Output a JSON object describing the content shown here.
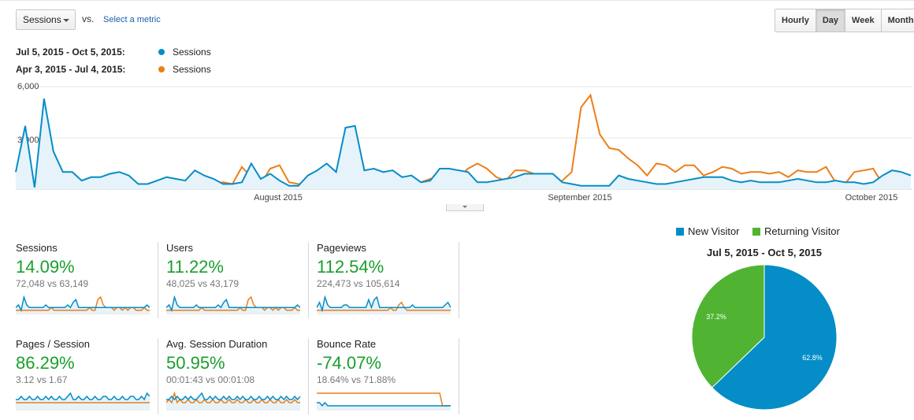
{
  "controls": {
    "metric_select": "Sessions",
    "vs_label": "vs.",
    "select_metric_link": "Select a metric",
    "granularity": [
      {
        "label": "Hourly",
        "active": false
      },
      {
        "label": "Day",
        "active": true
      },
      {
        "label": "Week",
        "active": false
      },
      {
        "label": "Month",
        "active": false
      }
    ]
  },
  "legend": [
    {
      "range": "Jul 5, 2015 - Oct 5, 2015:",
      "series": "Sessions",
      "color": "#058dc7"
    },
    {
      "range": "Apr 3, 2015 - Jul 4, 2015:",
      "series": "Sessions",
      "color": "#ed7e17"
    }
  ],
  "chart_data": {
    "type": "line",
    "y_ticks": [
      "6,000",
      "3,000"
    ],
    "ylim": [
      0,
      6000
    ],
    "x_ticks": [
      "August 2015",
      "September 2015",
      "October 2015"
    ],
    "grid": true,
    "series": [
      {
        "name": "Sessions (Jul 5, 2015 - Oct 5, 2015)",
        "color": "#058dc7",
        "values": [
          1000,
          3700,
          100,
          5300,
          2200,
          1000,
          1000,
          500,
          700,
          700,
          900,
          1000,
          800,
          300,
          300,
          500,
          700,
          600,
          500,
          1100,
          800,
          600,
          300,
          300,
          400,
          1500,
          600,
          900,
          500,
          200,
          200,
          800,
          1100,
          1500,
          1000,
          3600,
          3700,
          1100,
          1200,
          1000,
          1100,
          700,
          800,
          400,
          500,
          1200,
          1200,
          1100,
          1000,
          400,
          400,
          500,
          600,
          700,
          900,
          900,
          900,
          900,
          400,
          300,
          200,
          200,
          200,
          200,
          800,
          600,
          500,
          400,
          300,
          300,
          400,
          500,
          600,
          700,
          700,
          700,
          500,
          400,
          500,
          400,
          400,
          400,
          500,
          600,
          500,
          400,
          400,
          500,
          400,
          400,
          300,
          400,
          800,
          1100,
          1000,
          800
        ]
      },
      {
        "name": "Sessions (Apr 3, 2015 - Jul 4, 2015)",
        "color": "#ed7e17",
        "values": [
          200,
          200,
          300,
          300,
          400,
          300,
          200,
          150,
          150,
          200,
          200,
          300,
          200,
          200,
          200,
          200,
          300,
          300,
          200,
          200,
          200,
          300,
          400,
          300,
          1300,
          700,
          300,
          1200,
          1400,
          400,
          300,
          200,
          200,
          300,
          200,
          200,
          300,
          200,
          200,
          300,
          600,
          300,
          300,
          400,
          600,
          800,
          700,
          700,
          1200,
          1500,
          1200,
          700,
          500,
          1100,
          1100,
          900,
          700,
          400,
          500,
          1000,
          4800,
          5500,
          3200,
          2400,
          2300,
          1800,
          1400,
          800,
          1500,
          1400,
          1000,
          1400,
          1400,
          800,
          1000,
          1300,
          1200,
          900,
          1000,
          1000,
          900,
          1000,
          700,
          1100,
          1000,
          1000,
          1300,
          400,
          300,
          1000,
          1100,
          1200,
          300,
          200,
          200,
          200
        ]
      }
    ]
  },
  "scorecards": [
    {
      "title": "Sessions",
      "change": "14.09%",
      "compare": "72,048 vs 63,149",
      "spark_cur": [
        2,
        3,
        1,
        6,
        3,
        2,
        2,
        2,
        2,
        2,
        2,
        3,
        2,
        2,
        2,
        2,
        2,
        2,
        2,
        3,
        2,
        4,
        5,
        2,
        2,
        2,
        2,
        2,
        2,
        2,
        2,
        2,
        2,
        2,
        2,
        2,
        2,
        2,
        2,
        2,
        2,
        2,
        2,
        2,
        2,
        2,
        2,
        2,
        3,
        2
      ],
      "spark_prev": [
        1,
        1,
        1,
        1,
        1,
        1,
        1,
        1,
        1,
        1,
        1,
        1,
        1,
        2,
        1,
        1,
        1,
        1,
        1,
        1,
        1,
        1,
        1,
        1,
        1,
        1,
        1,
        2,
        1,
        1,
        5,
        6,
        3,
        2,
        2,
        2,
        1,
        2,
        2,
        1,
        2,
        1,
        2,
        2,
        1,
        1,
        1,
        2,
        1,
        1
      ]
    },
    {
      "title": "Users",
      "change": "11.22%",
      "compare": "48,025 vs 43,179",
      "spark_cur": [
        2,
        3,
        1,
        6,
        3,
        2,
        2,
        2,
        2,
        2,
        2,
        3,
        2,
        2,
        2,
        2,
        2,
        2,
        2,
        3,
        2,
        4,
        5,
        2,
        2,
        2,
        2,
        2,
        2,
        2,
        2,
        2,
        2,
        2,
        2,
        2,
        2,
        2,
        2,
        2,
        2,
        2,
        2,
        2,
        2,
        2,
        2,
        2,
        3,
        2
      ],
      "spark_prev": [
        1,
        1,
        1,
        1,
        1,
        1,
        1,
        1,
        1,
        1,
        1,
        1,
        1,
        2,
        1,
        1,
        1,
        1,
        1,
        1,
        1,
        1,
        1,
        1,
        1,
        1,
        1,
        2,
        1,
        1,
        5,
        6,
        3,
        2,
        2,
        2,
        1,
        2,
        2,
        1,
        2,
        1,
        2,
        2,
        1,
        1,
        1,
        2,
        1,
        1
      ]
    },
    {
      "title": "Pageviews",
      "change": "112.54%",
      "compare": "224,473 vs 105,614",
      "spark_cur": [
        2,
        4,
        1,
        6,
        3,
        2,
        2,
        2,
        2,
        2,
        3,
        3,
        2,
        2,
        2,
        2,
        2,
        2,
        2,
        5,
        2,
        5,
        6,
        2,
        2,
        2,
        2,
        2,
        2,
        2,
        2,
        2,
        2,
        2,
        2,
        3,
        2,
        2,
        2,
        2,
        2,
        2,
        2,
        2,
        2,
        2,
        2,
        3,
        4,
        2
      ],
      "spark_prev": [
        1,
        1,
        1,
        1,
        1,
        1,
        1,
        1,
        1,
        1,
        1,
        1,
        1,
        1,
        1,
        1,
        1,
        1,
        1,
        1,
        1,
        1,
        1,
        1,
        1,
        1,
        1,
        2,
        1,
        1,
        3,
        4,
        2,
        1,
        1,
        1,
        1,
        1,
        1,
        1,
        1,
        1,
        1,
        1,
        1,
        1,
        1,
        1,
        1,
        1
      ]
    },
    {
      "title": "Pages / Session",
      "change": "86.29%",
      "compare": "3.12 vs 1.67",
      "spark_cur": [
        3,
        3,
        4,
        3,
        3,
        4,
        3,
        3,
        4,
        3,
        3,
        4,
        3,
        4,
        3,
        3,
        4,
        3,
        3,
        4,
        5,
        3,
        3,
        4,
        3,
        3,
        4,
        3,
        3,
        4,
        3,
        3,
        4,
        4,
        3,
        3,
        4,
        3,
        3,
        4,
        3,
        3,
        4,
        4,
        3,
        3,
        4,
        3,
        5,
        4
      ],
      "spark_prev": [
        2,
        2,
        2,
        2,
        2,
        2,
        2,
        2,
        2,
        2,
        2,
        2,
        2,
        2,
        2,
        2,
        2,
        2,
        2,
        2,
        2,
        2,
        2,
        2,
        2,
        2,
        2,
        2,
        2,
        2,
        2,
        2,
        2,
        2,
        2,
        2,
        2,
        2,
        2,
        2,
        2,
        2,
        2,
        2,
        2,
        2,
        2,
        2,
        2,
        2
      ]
    },
    {
      "title": "Avg. Session Duration",
      "change": "50.95%",
      "compare": "00:01:43 vs 00:01:08",
      "spark_cur": [
        3,
        3,
        4,
        3,
        4,
        3,
        3,
        4,
        3,
        4,
        3,
        3,
        4,
        5,
        3,
        3,
        4,
        3,
        4,
        3,
        3,
        4,
        3,
        4,
        3,
        3,
        4,
        3,
        4,
        3,
        3,
        4,
        3,
        3,
        4,
        3,
        3,
        4,
        3,
        4,
        3,
        3,
        4,
        3,
        4,
        3,
        3,
        4,
        3,
        4
      ],
      "spark_prev": [
        2,
        3,
        2,
        5,
        2,
        3,
        2,
        2,
        3,
        2,
        2,
        3,
        2,
        2,
        3,
        2,
        2,
        3,
        2,
        2,
        3,
        2,
        2,
        3,
        2,
        2,
        3,
        2,
        2,
        3,
        2,
        2,
        3,
        2,
        2,
        3,
        2,
        2,
        3,
        2,
        2,
        3,
        2,
        2,
        3,
        2,
        2,
        3,
        2,
        2
      ]
    },
    {
      "title": "Bounce Rate",
      "change": "-74.07%",
      "compare": "18.64% vs 71.88%",
      "spark_cur": [
        2,
        2,
        1,
        2,
        1,
        1,
        1,
        1,
        1,
        1,
        1,
        1,
        1,
        1,
        1,
        1,
        1,
        1,
        1,
        1,
        1,
        1,
        1,
        1,
        1,
        1,
        1,
        1,
        1,
        1,
        1,
        1,
        1,
        1,
        1,
        1,
        1,
        1,
        1,
        1,
        1,
        1,
        1,
        1,
        1,
        1,
        1,
        1,
        1,
        1
      ],
      "spark_prev": [
        5,
        5,
        5,
        5,
        5,
        5,
        5,
        5,
        5,
        5,
        5,
        5,
        5,
        5,
        5,
        5,
        5,
        5,
        5,
        5,
        5,
        5,
        5,
        5,
        5,
        5,
        5,
        5,
        5,
        5,
        5,
        5,
        5,
        5,
        5,
        5,
        5,
        5,
        5,
        5,
        5,
        5,
        5,
        5,
        5,
        5,
        1,
        1,
        1,
        1
      ]
    }
  ],
  "pie": {
    "legend": [
      {
        "label": "New Visitor",
        "color": "#058dc7"
      },
      {
        "label": "Returning Visitor",
        "color": "#50b432"
      }
    ],
    "title": "Jul 5, 2015 - Oct 5, 2015",
    "slices": [
      {
        "label": "New Visitor",
        "value": 62.8,
        "display": "62.8%",
        "color": "#058dc7"
      },
      {
        "label": "Returning Visitor",
        "value": 37.2,
        "display": "37.2%",
        "color": "#50b432"
      }
    ]
  }
}
